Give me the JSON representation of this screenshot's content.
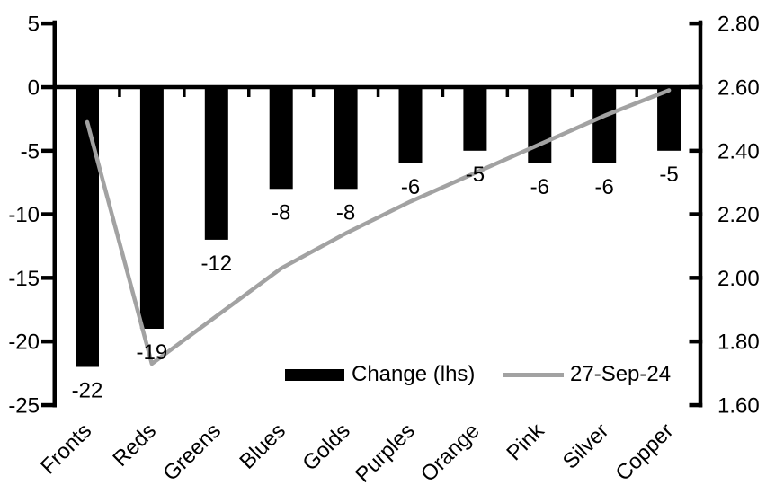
{
  "chart_data": {
    "type": "combo-bar-line",
    "title": "",
    "categories": [
      "Fronts",
      "Reds",
      "Greens",
      "Blues",
      "Golds",
      "Purples",
      "Orange",
      "Pink",
      "Silver",
      "Copper"
    ],
    "series": [
      {
        "name": "Change (lhs)",
        "type": "bar",
        "axis": "left",
        "color": "#000000",
        "values": [
          -22,
          -19,
          -12,
          -8,
          -8,
          -6,
          -5,
          -6,
          -6,
          -5
        ],
        "data_labels": [
          "-22",
          "-19",
          "-12",
          "-8",
          "-8",
          "-6",
          "-5",
          "-6",
          "-6",
          "-5"
        ]
      },
      {
        "name": "27-Sep-24",
        "type": "line",
        "axis": "right",
        "color": "#a2a2a2",
        "values": [
          2.49,
          1.73,
          1.88,
          2.03,
          2.14,
          2.24,
          2.33,
          2.42,
          2.51,
          2.59
        ]
      }
    ],
    "left_axis": {
      "min": -25,
      "max": 5,
      "step": 5,
      "tick_labels": [
        "5",
        "0",
        "-5",
        "-10",
        "-15",
        "-20",
        "-25"
      ]
    },
    "right_axis": {
      "min": 1.6,
      "max": 2.8,
      "step": 0.2,
      "tick_labels": [
        "2.80",
        "2.60",
        "2.40",
        "2.20",
        "2.00",
        "1.80",
        "1.60"
      ]
    },
    "legend": {
      "position": "bottom-inside",
      "items": [
        {
          "label": "Change (lhs)",
          "swatch": "bar",
          "color": "#000000"
        },
        {
          "label": "27-Sep-24",
          "swatch": "line",
          "color": "#a2a2a2"
        }
      ]
    },
    "grid": false,
    "background": "#ffffff",
    "colors": {
      "bar": "#000000",
      "line": "#a2a2a2",
      "axis": "#000000",
      "text": "#000000"
    }
  }
}
